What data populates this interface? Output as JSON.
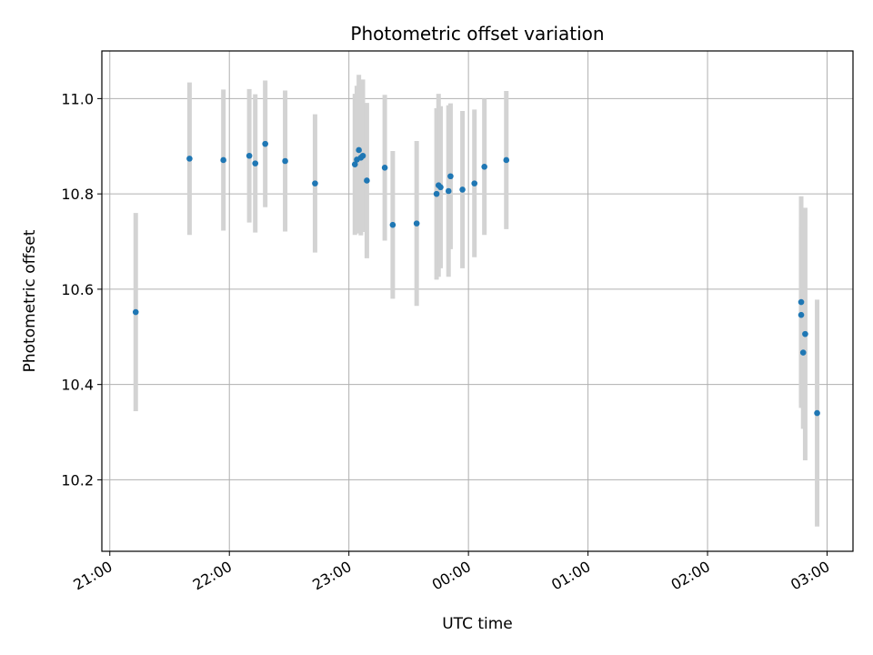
{
  "chart_data": {
    "type": "scatter",
    "title": "Photometric offset variation",
    "xlabel": "UTC time",
    "ylabel": "Photometric offset",
    "x_unit": "UTC time (HH:MM), points after midnight shown as 24:MM+",
    "xlim": [
      "20:56",
      "27:13"
    ],
    "ylim": [
      10.05,
      11.1
    ],
    "x_ticks": [
      "21:00",
      "22:00",
      "23:00",
      "00:00",
      "01:00",
      "02:00",
      "03:00"
    ],
    "y_ticks": [
      "10.2",
      "10.4",
      "10.6",
      "10.8",
      "11.0"
    ],
    "grid": true,
    "marker_color": "#1f77b4",
    "errorbar_color": "#d3d3d3",
    "points": [
      {
        "t": "21:13",
        "y": 10.552,
        "err": 0.208
      },
      {
        "t": "21:40",
        "y": 10.874,
        "err": 0.16
      },
      {
        "t": "21:57",
        "y": 10.871,
        "err": 0.148
      },
      {
        "t": "22:10",
        "y": 10.88,
        "err": 0.14
      },
      {
        "t": "22:13",
        "y": 10.864,
        "err": 0.145
      },
      {
        "t": "22:18",
        "y": 10.905,
        "err": 0.133
      },
      {
        "t": "22:28",
        "y": 10.869,
        "err": 0.148
      },
      {
        "t": "22:43",
        "y": 10.822,
        "err": 0.145
      },
      {
        "t": "23:03",
        "y": 10.862,
        "err": 0.148
      },
      {
        "t": "23:04",
        "y": 10.872,
        "err": 0.155
      },
      {
        "t": "23:05",
        "y": 10.892,
        "err": 0.158
      },
      {
        "t": "23:06",
        "y": 10.876,
        "err": 0.163
      },
      {
        "t": "23:07",
        "y": 10.88,
        "err": 0.16
      },
      {
        "t": "23:09",
        "y": 10.828,
        "err": 0.163
      },
      {
        "t": "23:18",
        "y": 10.855,
        "err": 0.153
      },
      {
        "t": "23:22",
        "y": 10.735,
        "err": 0.155
      },
      {
        "t": "23:34",
        "y": 10.738,
        "err": 0.173
      },
      {
        "t": "23:44",
        "y": 10.8,
        "err": 0.18
      },
      {
        "t": "23:45",
        "y": 10.818,
        "err": 0.192
      },
      {
        "t": "23:46",
        "y": 10.814,
        "err": 0.17
      },
      {
        "t": "23:50",
        "y": 10.806,
        "err": 0.18
      },
      {
        "t": "23:51",
        "y": 10.837,
        "err": 0.153
      },
      {
        "t": "23:57",
        "y": 10.809,
        "err": 0.165
      },
      {
        "t": "24:03",
        "y": 10.822,
        "err": 0.155
      },
      {
        "t": "24:08",
        "y": 10.857,
        "err": 0.143
      },
      {
        "t": "24:19",
        "y": 10.871,
        "err": 0.145
      },
      {
        "t": "26:47",
        "y": 10.573,
        "err": 0.222
      },
      {
        "t": "26:47",
        "y": 10.546,
        "err": 0.185
      },
      {
        "t": "26:48",
        "y": 10.467,
        "err": 0.16
      },
      {
        "t": "26:49",
        "y": 10.506,
        "err": 0.265
      },
      {
        "t": "26:55",
        "y": 10.34,
        "err": 0.238
      }
    ]
  }
}
